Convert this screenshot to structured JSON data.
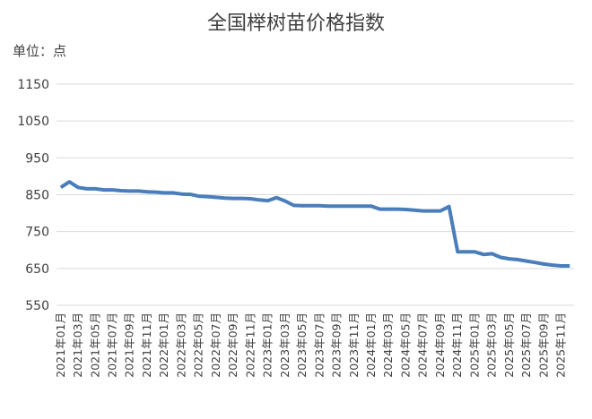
{
  "chart_data": {
    "type": "line",
    "title": "全国榉树苗价格指数",
    "unit_label": "单位：点",
    "categories": [
      "2021年01月",
      null,
      "2021年03月",
      null,
      "2021年05月",
      null,
      "2021年07月",
      null,
      "2021年09月",
      null,
      "2021年11月",
      null,
      "2022年01月",
      null,
      "2022年03月",
      null,
      "2022年05月",
      null,
      "2022年07月",
      null,
      "2022年09月",
      null,
      "2022年11月",
      null,
      "2023年01月",
      null,
      "2023年03月",
      null,
      "2023年05月",
      null,
      "2023年07月",
      null,
      "2023年09月",
      null,
      "2023年11月",
      null,
      "2024年01月",
      null,
      "2024年03月",
      null,
      "2024年05月",
      null,
      "2024年07月",
      null,
      "2024年09月",
      null,
      "2024年11月",
      null,
      "2025年01月",
      null,
      "2025年03月",
      null,
      "2025年05月",
      null,
      "2025年07月",
      null,
      "2025年09月",
      null,
      "2025年11月",
      null
    ],
    "values": [
      870,
      885,
      870,
      866,
      866,
      863,
      863,
      861,
      860,
      860,
      858,
      857,
      855,
      855,
      852,
      851,
      846,
      845,
      843,
      841,
      840,
      840,
      839,
      836,
      834,
      842,
      833,
      821,
      820,
      820,
      820,
      819,
      819,
      819,
      819,
      819,
      819,
      811,
      811,
      811,
      810,
      808,
      806,
      806,
      806,
      818,
      695,
      695,
      695,
      688,
      690,
      680,
      676,
      674,
      670,
      666,
      662,
      659,
      657,
      657
    ],
    "color": "#4a7ebb",
    "ylim": [
      550,
      1150
    ],
    "yticks": [
      550,
      650,
      750,
      850,
      950,
      1050,
      1150
    ],
    "grid": true
  }
}
